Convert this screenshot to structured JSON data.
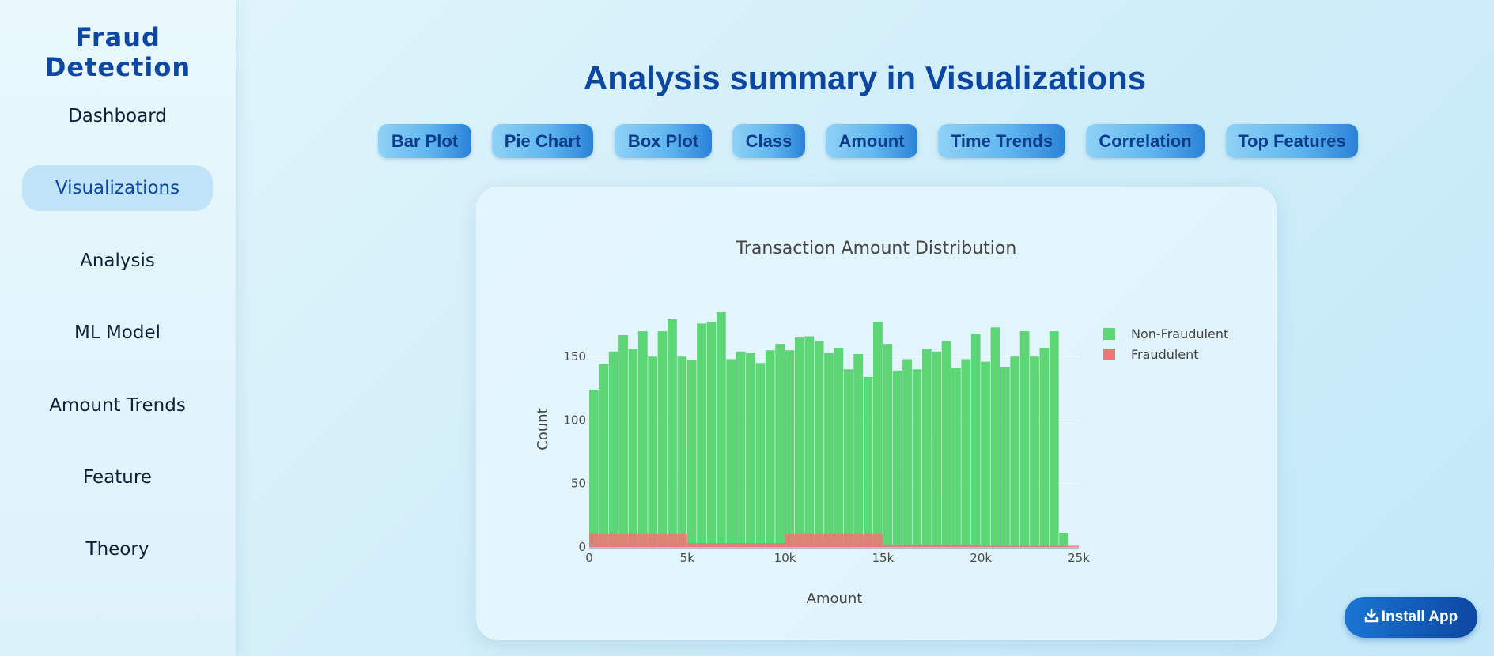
{
  "sidebar": {
    "brand": "Fraud Detection",
    "items": [
      {
        "label": "Dashboard",
        "active": false
      },
      {
        "label": "Visualizations",
        "active": true
      },
      {
        "label": "Analysis",
        "active": false
      },
      {
        "label": "ML Model",
        "active": false
      },
      {
        "label": "Amount Trends",
        "active": false
      },
      {
        "label": "Feature",
        "active": false
      },
      {
        "label": "Theory",
        "active": false
      }
    ]
  },
  "main": {
    "title": "Analysis summary in Visualizations",
    "tabs": [
      "Bar Plot",
      "Pie Chart",
      "Box Plot",
      "Class",
      "Amount",
      "Time Trends",
      "Correlation",
      "Top Features"
    ]
  },
  "install": {
    "label": "Install App",
    "icon": "download-icon"
  },
  "colors": {
    "accent": "#0d47a1",
    "non_fraud": "#5dd675",
    "fraud": "#f07575"
  },
  "chart_data": {
    "type": "bar",
    "title": "Transaction Amount Distribution",
    "xlabel": "Amount",
    "ylabel": "Count",
    "xlim": [
      0,
      25000
    ],
    "ylim": [
      0,
      190
    ],
    "x_ticks": [
      0,
      5000,
      10000,
      15000,
      20000,
      25000
    ],
    "x_tick_labels": [
      "0",
      "5k",
      "10k",
      "15k",
      "20k",
      "25k"
    ],
    "y_ticks": [
      0,
      50,
      100,
      150
    ],
    "y_tick_labels": [
      "0",
      "50",
      "100",
      "150"
    ],
    "legend_position": "top-right",
    "series": [
      {
        "name": "Non-Fraudulent",
        "bin_width": 500,
        "bin_start": 0,
        "values": [
          124,
          144,
          154,
          167,
          156,
          170,
          150,
          170,
          180,
          150,
          147,
          176,
          177,
          185,
          148,
          154,
          153,
          145,
          155,
          160,
          155,
          165,
          166,
          162,
          153,
          157,
          140,
          152,
          134,
          177,
          160,
          139,
          148,
          140,
          156,
          154,
          162,
          141,
          148,
          168,
          146,
          173,
          142,
          150,
          170,
          150,
          157,
          170,
          11,
          0
        ]
      },
      {
        "name": "Fraudulent",
        "bin_width": 5000,
        "bin_start": 0,
        "values": [
          10,
          3,
          10,
          2,
          1
        ]
      }
    ]
  }
}
